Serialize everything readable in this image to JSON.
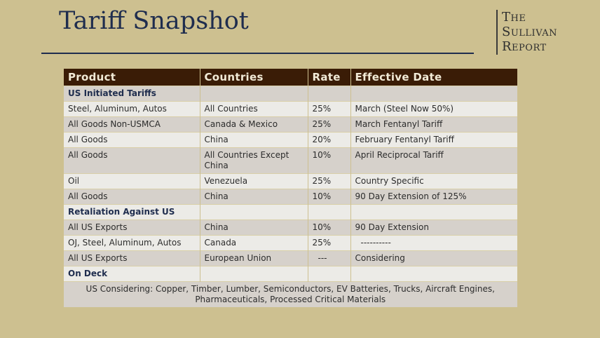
{
  "title": "Tariff Snapshot",
  "logo": {
    "line1": "The",
    "line2": "Sullivan",
    "line3": "Report"
  },
  "table": {
    "headers": [
      "Product",
      "Countries",
      "Rate",
      "Effective Date"
    ],
    "sections": [
      {
        "label": "US Initiated Tariffs",
        "rows": [
          [
            "Steel, Aluminum, Autos",
            "All Countries",
            "25%",
            "March (Steel Now 50%)"
          ],
          [
            "All Goods Non-USMCA",
            "Canada & Mexico",
            "25%",
            "March Fentanyl Tariff"
          ],
          [
            "All Goods",
            "China",
            "20%",
            "February Fentanyl Tariff"
          ],
          [
            "All Goods",
            "All Countries Except China",
            "10%",
            "April Reciprocal Tariff"
          ],
          [
            "Oil",
            "Venezuela",
            "25%",
            "Country Specific"
          ],
          [
            "All Goods",
            "China",
            "10%",
            "90 Day Extension of 125%"
          ]
        ]
      },
      {
        "label": "Retaliation Against US",
        "rows": [
          [
            "All US Exports",
            "China",
            "10%",
            "90 Day Extension"
          ],
          [
            "OJ, Steel, Aluminum, Autos",
            "Canada",
            "25%",
            "----------"
          ],
          [
            "All US Exports",
            "European Union",
            "---",
            "Considering"
          ]
        ]
      },
      {
        "label": "On Deck",
        "rows": []
      }
    ],
    "note": "US Considering: Copper, Timber, Lumber, Semiconductors, EV Batteries, Trucks, Aircraft Engines, Pharmaceuticals, Processed Critical Materials"
  }
}
